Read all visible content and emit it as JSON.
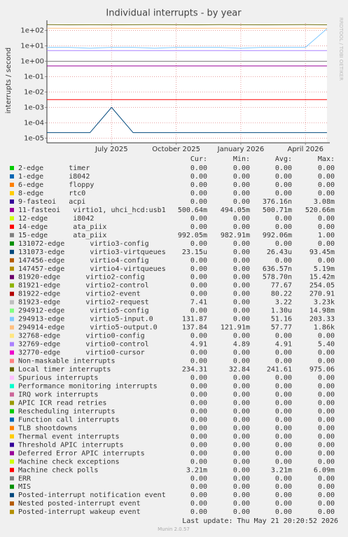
{
  "chart_data": {
    "type": "line",
    "title": "Individual interrupts - by year",
    "y_label": "interrupts / second",
    "watermark": "RRDTOOL / TOBI OETIKER",
    "log_y": true,
    "grid": true,
    "ylim": [
      5e-06,
      300
    ],
    "yticks": [
      {
        "value": 1e-05,
        "label": "1e-05"
      },
      {
        "value": 0.0001,
        "label": "1e-04"
      },
      {
        "value": 0.001,
        "label": "1e-03"
      },
      {
        "value": 0.01,
        "label": "1e-02"
      },
      {
        "value": 0.1,
        "label": "1e-01"
      },
      {
        "value": 1,
        "label": "1e+00"
      },
      {
        "value": 10,
        "label": "1e+01"
      },
      {
        "value": 100,
        "label": "1e+02"
      }
    ],
    "xlim": [
      "2025-04",
      "2026-05"
    ],
    "xticks": [
      {
        "value": "2025-07",
        "label": "July 2025"
      },
      {
        "value": "2025-10",
        "label": "October 2025"
      },
      {
        "value": "2026-01",
        "label": "January 2026"
      },
      {
        "value": "2026-04",
        "label": "April 2026"
      }
    ],
    "x": [
      "2025-04",
      "2025-05",
      "2025-06",
      "2025-07",
      "2025-08",
      "2025-09",
      "2025-10",
      "2025-11",
      "2025-12",
      "2026-01",
      "2026-02",
      "2026-03",
      "2026-04",
      "2026-05"
    ],
    "series": [
      {
        "name": "Local timer interrupts",
        "color": "#666600",
        "values": [
          240,
          235,
          238,
          234,
          236,
          240,
          237,
          235,
          239,
          236,
          234,
          238,
          240,
          234
        ]
      },
      {
        "name": "294914-edge      virtio5-output.0",
        "color": "#FFC080",
        "values": [
          140,
          138,
          139,
          141,
          137,
          140,
          138,
          139,
          140,
          137,
          138,
          139,
          140,
          138
        ]
      },
      {
        "name": "294913-edge      virtio5-input.0",
        "color": "#80C9FF",
        "values": [
          8,
          8,
          7,
          8,
          8,
          7,
          8,
          8,
          8,
          7,
          8,
          8,
          8,
          130
        ]
      },
      {
        "name": "32769-edge      virtio0-control",
        "color": "#AA80FF",
        "values": [
          4.9,
          4.9,
          4.9,
          4.9,
          4.9,
          4.9,
          4.9,
          4.9,
          4.9,
          4.9,
          4.9,
          4.9,
          4.9,
          4.9
        ]
      },
      {
        "name": "15-edge      ata_piix",
        "color": "#808080",
        "values": [
          0.99,
          0.99,
          0.99,
          0.99,
          0.99,
          0.99,
          0.99,
          0.99,
          0.99,
          0.99,
          0.99,
          0.99,
          0.99,
          0.99
        ]
      },
      {
        "name": "11-fasteoi   virtio1, uhci_hcd:usb1",
        "color": "#990099",
        "values": [
          0.5,
          0.5,
          0.5,
          0.5,
          0.5,
          0.5,
          0.5,
          0.5,
          0.5,
          0.5,
          0.5,
          0.5,
          0.5,
          0.5
        ]
      },
      {
        "name": "Machine check polls",
        "color": "#FF0000",
        "values": [
          0.0032,
          0.0032,
          0.0032,
          0.0032,
          0.0032,
          0.0032,
          0.0032,
          0.0032,
          0.0032,
          0.0032,
          0.0032,
          0.0032,
          0.0032,
          0.0032
        ]
      },
      {
        "name": "131073-edge     virtio3-virtqueues",
        "color": "#00487D",
        "values": [
          2.3e-05,
          2.3e-05,
          2.3e-05,
          0.001,
          2.3e-05,
          2.3e-05,
          2.3e-05,
          2.3e-05,
          2.3e-05,
          2.3e-05,
          2.3e-05,
          2.3e-05,
          2.3e-05,
          2.3e-05
        ]
      }
    ],
    "legend_table": {
      "headers": [
        "Cur:",
        "Min:",
        "Avg:",
        "Max:"
      ],
      "rows": [
        {
          "name": "2-edge      timer",
          "color": "#00CC00",
          "cur": "0.00",
          "min": "0.00",
          "avg": "0.00",
          "max": "0.00"
        },
        {
          "name": "1-edge      i8042",
          "color": "#0066B3",
          "cur": "0.00",
          "min": "0.00",
          "avg": "0.00",
          "max": "0.00"
        },
        {
          "name": "6-edge      floppy",
          "color": "#FF8000",
          "cur": "0.00",
          "min": "0.00",
          "avg": "0.00",
          "max": "0.00"
        },
        {
          "name": "8-edge      rtc0",
          "color": "#FFCC00",
          "cur": "0.00",
          "min": "0.00",
          "avg": "0.00",
          "max": "0.00"
        },
        {
          "name": "9-fasteoi   acpi",
          "color": "#330099",
          "cur": "0.00",
          "min": "0.00",
          "avg": "376.16n",
          "max": "3.08m"
        },
        {
          "name": "11-fasteoi   virtio1, uhci_hcd:usb1",
          "color": "#990099",
          "cur": "500.64m",
          "min": "494.05m",
          "avg": "500.71m",
          "max": "520.66m"
        },
        {
          "name": "12-edge      i8042",
          "color": "#CCFF00",
          "cur": "0.00",
          "min": "0.00",
          "avg": "0.00",
          "max": "0.00"
        },
        {
          "name": "14-edge      ata_piix",
          "color": "#FF0000",
          "cur": "0.00",
          "min": "0.00",
          "avg": "0.00",
          "max": "0.00"
        },
        {
          "name": "15-edge      ata_piix",
          "color": "#808080",
          "cur": "992.05m",
          "min": "982.91m",
          "avg": "992.06m",
          "max": "1.00"
        },
        {
          "name": "131072-edge      virtio3-config",
          "color": "#008F00",
          "cur": "0.00",
          "min": "0.00",
          "avg": "0.00",
          "max": "0.00"
        },
        {
          "name": "131073-edge      virtio3-virtqueues",
          "color": "#00487D",
          "cur": "23.15u",
          "min": "0.00",
          "avg": "26.43u",
          "max": "93.45m"
        },
        {
          "name": "147456-edge      virtio4-config",
          "color": "#B35A00",
          "cur": "0.00",
          "min": "0.00",
          "avg": "0.00",
          "max": "0.00"
        },
        {
          "name": "147457-edge      virtio4-virtqueues",
          "color": "#B38F00",
          "cur": "0.00",
          "min": "0.00",
          "avg": "636.57n",
          "max": "5.19m"
        },
        {
          "name": "81920-edge      virtio2-config",
          "color": "#6B006B",
          "cur": "0.00",
          "min": "0.00",
          "avg": "578.70n",
          "max": "15.42m"
        },
        {
          "name": "81921-edge      virtio2-control",
          "color": "#8FB300",
          "cur": "0.00",
          "min": "0.00",
          "avg": "77.67",
          "max": "254.05"
        },
        {
          "name": "81922-edge      virtio2-event",
          "color": "#B30000",
          "cur": "0.00",
          "min": "0.00",
          "avg": "80.22",
          "max": "270.91"
        },
        {
          "name": "81923-edge      virtio2-request",
          "color": "#BEBEBE",
          "cur": "7.41",
          "min": "0.00",
          "avg": "3.22",
          "max": "3.23k"
        },
        {
          "name": "294912-edge      virtio5-config",
          "color": "#80FF80",
          "cur": "0.00",
          "min": "0.00",
          "avg": "1.30u",
          "max": "14.98m"
        },
        {
          "name": "294913-edge      virtio5-input.0",
          "color": "#80C9FF",
          "cur": "131.87",
          "min": "0.00",
          "avg": "51.16",
          "max": "203.33"
        },
        {
          "name": "294914-edge      virtio5-output.0",
          "color": "#FFC080",
          "cur": "137.84",
          "min": "121.91m",
          "avg": "57.77",
          "max": "1.86k"
        },
        {
          "name": "32768-edge      virtio0-config",
          "color": "#FFE680",
          "cur": "0.00",
          "min": "0.00",
          "avg": "0.00",
          "max": "0.00"
        },
        {
          "name": "32769-edge      virtio0-control",
          "color": "#AA80FF",
          "cur": "4.91",
          "min": "4.89",
          "avg": "4.91",
          "max": "5.40"
        },
        {
          "name": "32770-edge      virtio0-cursor",
          "color": "#EE00CC",
          "cur": "0.00",
          "min": "0.00",
          "avg": "0.00",
          "max": "0.00"
        },
        {
          "name": "Non-maskable interrupts",
          "color": "#FF8080",
          "cur": "0.00",
          "min": "0.00",
          "avg": "0.00",
          "max": "0.00"
        },
        {
          "name": "Local timer interrupts",
          "color": "#666600",
          "cur": "234.31",
          "min": "32.84",
          "avg": "241.61",
          "max": "975.06"
        },
        {
          "name": "Spurious interrupts",
          "color": "#FFBFFF",
          "cur": "0.00",
          "min": "0.00",
          "avg": "0.00",
          "max": "0.00"
        },
        {
          "name": "Performance monitoring interrupts",
          "color": "#00FFCC",
          "cur": "0.00",
          "min": "0.00",
          "avg": "0.00",
          "max": "0.00"
        },
        {
          "name": "IRQ work interrupts",
          "color": "#CC6699",
          "cur": "0.00",
          "min": "0.00",
          "avg": "0.00",
          "max": "0.00"
        },
        {
          "name": "APIC ICR read retries",
          "color": "#999900",
          "cur": "0.00",
          "min": "0.00",
          "avg": "0.00",
          "max": "0.00"
        },
        {
          "name": "Rescheduling interrupts",
          "color": "#00CC00",
          "cur": "0.00",
          "min": "0.00",
          "avg": "0.00",
          "max": "0.00"
        },
        {
          "name": "Function call interrupts",
          "color": "#0066B3",
          "cur": "0.00",
          "min": "0.00",
          "avg": "0.00",
          "max": "0.00"
        },
        {
          "name": "TLB shootdowns",
          "color": "#FF8000",
          "cur": "0.00",
          "min": "0.00",
          "avg": "0.00",
          "max": "0.00"
        },
        {
          "name": "Thermal event interrupts",
          "color": "#FFCC00",
          "cur": "0.00",
          "min": "0.00",
          "avg": "0.00",
          "max": "0.00"
        },
        {
          "name": "Threshold APIC interrupts",
          "color": "#330099",
          "cur": "0.00",
          "min": "0.00",
          "avg": "0.00",
          "max": "0.00"
        },
        {
          "name": "Deferred Error APIC interrupts",
          "color": "#990099",
          "cur": "0.00",
          "min": "0.00",
          "avg": "0.00",
          "max": "0.00"
        },
        {
          "name": "Machine check exceptions",
          "color": "#CCFF00",
          "cur": "0.00",
          "min": "0.00",
          "avg": "0.00",
          "max": "0.00"
        },
        {
          "name": "Machine check polls",
          "color": "#FF0000",
          "cur": "3.21m",
          "min": "0.00",
          "avg": "3.21m",
          "max": "6.09m"
        },
        {
          "name": "ERR",
          "color": "#808080",
          "cur": "0.00",
          "min": "0.00",
          "avg": "0.00",
          "max": "0.00"
        },
        {
          "name": "MIS",
          "color": "#008F00",
          "cur": "0.00",
          "min": "0.00",
          "avg": "0.00",
          "max": "0.00"
        },
        {
          "name": "Posted-interrupt notification event",
          "color": "#00487D",
          "cur": "0.00",
          "min": "0.00",
          "avg": "0.00",
          "max": "0.00"
        },
        {
          "name": "Nested posted-interrupt event",
          "color": "#B35A00",
          "cur": "0.00",
          "min": "0.00",
          "avg": "0.00",
          "max": "0.00"
        },
        {
          "name": "Posted-interrupt wakeup event",
          "color": "#B38F00",
          "cur": "0.00",
          "min": "0.00",
          "avg": "0.00",
          "max": "0.00"
        }
      ]
    },
    "last_update": "Last update: Thu May 21 20:20:52 2026",
    "version": "Munin 2.0.57"
  }
}
